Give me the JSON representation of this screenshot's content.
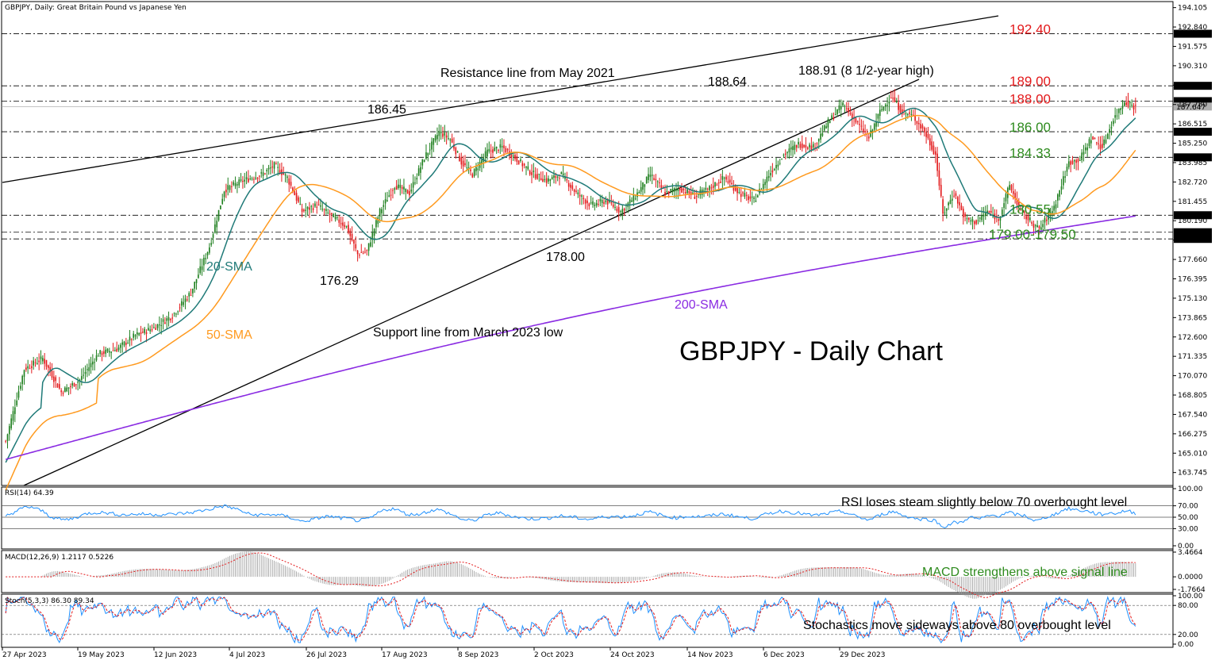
{
  "header": {
    "title": "GBPJPY, Daily:  Great Britain Pound vs Japanese Yen"
  },
  "chart_data": {
    "type": "candlestick",
    "title": "GBPJPY - Daily Chart",
    "price_axis": {
      "ticks": [
        "194.105",
        "192.840",
        "191.575",
        "190.310",
        "189.045",
        "187.780",
        "186.515",
        "185.250",
        "183.985",
        "182.720",
        "181.455",
        "180.190",
        "178.925",
        "177.660",
        "176.395",
        "175.130",
        "173.865",
        "172.600",
        "171.335",
        "170.070",
        "168.805",
        "167.540",
        "166.275",
        "165.010",
        "163.745"
      ],
      "ylim": [
        162.9,
        194.5
      ]
    },
    "x_ticks": [
      "27 Apr 2023",
      "19 May 2023",
      "12 Jun 2023",
      "4 Jul 2023",
      "26 Jul 2023",
      "17 Aug 2023",
      "8 Sep 2023",
      "2 Oct 2023",
      "24 Oct 2023",
      "14 Nov 2023",
      "6 Dec 2023",
      "29 Dec 2023"
    ],
    "levels": [
      {
        "value": 192.4,
        "label": "192.40",
        "box": "192.389",
        "color": "#e31a1c"
      },
      {
        "value": 189.0,
        "label": "189.00",
        "box": "189.068",
        "color": "#e31a1c"
      },
      {
        "value": 188.0,
        "label": "188.00",
        "box": "188.045",
        "color": "#e31a1c"
      },
      {
        "value": 186.0,
        "label": "186.00",
        "box": "186.000",
        "color": "#2e8b1e"
      },
      {
        "value": 184.33,
        "label": "184.33",
        "box": "184.332",
        "color": "#2e8b1e"
      },
      {
        "value": 180.55,
        "label": "180.55",
        "box": "180.565",
        "color": "#2e8b1e"
      },
      {
        "value": 179.44,
        "label": "",
        "box": "179.449",
        "color": "#2e8b1e"
      },
      {
        "value": 179.0,
        "label": "179.00-179.50",
        "box": "179.000",
        "color": "#2e8b1e"
      }
    ],
    "current_price": "187.647",
    "annotations": {
      "resistance": "Resistance line from May 2021",
      "support": "Support line from March 2023 low",
      "high_8y": "188.91 (8 1/2-year high)",
      "h1": "186.45",
      "h2": "188.64",
      "l1": "176.29",
      "l2": "178.00"
    },
    "series": [
      {
        "name": "20-SMA",
        "color": "#1f7a78"
      },
      {
        "name": "50-SMA",
        "color": "#ff9a1f"
      },
      {
        "name": "200-SMA",
        "color": "#8a2be2"
      }
    ],
    "indicators": {
      "rsi": {
        "label": "RSI(14) 64.39",
        "ticks": [
          "100.00",
          "70.00",
          "50.00",
          "30.00",
          "0.00"
        ],
        "note": "RSI loses steam slightly below 70 overbought level"
      },
      "macd": {
        "label": "MACD(12,26,9) 1.2117 0.5226",
        "ticks": [
          "3.4664",
          "0.0000",
          "-1.7664"
        ],
        "note": "MACD strengthens above signal line"
      },
      "stoch": {
        "label": "Stoch(5,3,3) 86.30 89.34",
        "ticks": [
          "100.00",
          "80.00",
          "20.00",
          "0.00"
        ],
        "note": "Stochastics move sideways above 80 overbought level"
      }
    },
    "anchors": [
      [
        0,
        165.8
      ],
      [
        10,
        170.5
      ],
      [
        20,
        171.2
      ],
      [
        30,
        169.0
      ],
      [
        40,
        169.8
      ],
      [
        50,
        171.5
      ],
      [
        60,
        171.8
      ],
      [
        70,
        172.7
      ],
      [
        80,
        173.2
      ],
      [
        90,
        174.0
      ],
      [
        100,
        175.5
      ],
      [
        110,
        178.5
      ],
      [
        118,
        182.2
      ],
      [
        128,
        182.8
      ],
      [
        138,
        183.2
      ],
      [
        145,
        183.8
      ],
      [
        152,
        183.0
      ],
      [
        160,
        180.8
      ],
      [
        168,
        181.2
      ],
      [
        176,
        180.5
      ],
      [
        184,
        179.8
      ],
      [
        190,
        178.0
      ],
      [
        195,
        178.2
      ],
      [
        202,
        180.8
      ],
      [
        210,
        182.5
      ],
      [
        218,
        182.0
      ],
      [
        226,
        184.3
      ],
      [
        234,
        186.0
      ],
      [
        240,
        185.5
      ],
      [
        246,
        184.0
      ],
      [
        252,
        183.2
      ],
      [
        260,
        184.7
      ],
      [
        268,
        185.0
      ],
      [
        276,
        184.2
      ],
      [
        284,
        183.3
      ],
      [
        292,
        182.8
      ],
      [
        300,
        183.2
      ],
      [
        308,
        182.0
      ],
      [
        316,
        181.2
      ],
      [
        324,
        181.5
      ],
      [
        332,
        180.8
      ],
      [
        340,
        181.8
      ],
      [
        348,
        183.2
      ],
      [
        356,
        182.0
      ],
      [
        364,
        182.3
      ],
      [
        372,
        181.8
      ],
      [
        380,
        182.3
      ],
      [
        388,
        183.0
      ],
      [
        396,
        182.0
      ],
      [
        404,
        181.5
      ],
      [
        412,
        183.2
      ],
      [
        420,
        184.5
      ],
      [
        428,
        185.2
      ],
      [
        436,
        185.0
      ],
      [
        444,
        186.6
      ],
      [
        452,
        187.8
      ],
      [
        460,
        186.5
      ],
      [
        466,
        185.6
      ],
      [
        472,
        187.3
      ],
      [
        478,
        188.3
      ],
      [
        484,
        187.3
      ],
      [
        490,
        187.0
      ],
      [
        496,
        186.0
      ],
      [
        502,
        184.5
      ],
      [
        506,
        180.6
      ],
      [
        512,
        182.0
      ],
      [
        518,
        180.3
      ],
      [
        524,
        180.1
      ],
      [
        530,
        180.8
      ],
      [
        536,
        180.3
      ],
      [
        542,
        182.5
      ],
      [
        548,
        180.8
      ],
      [
        552,
        180.3
      ],
      [
        558,
        179.6
      ],
      [
        566,
        181.1
      ],
      [
        574,
        184.0
      ],
      [
        580,
        184.2
      ],
      [
        586,
        185.6
      ],
      [
        592,
        185.0
      ],
      [
        598,
        186.8
      ],
      [
        604,
        188.0
      ],
      [
        610,
        187.6
      ]
    ]
  }
}
